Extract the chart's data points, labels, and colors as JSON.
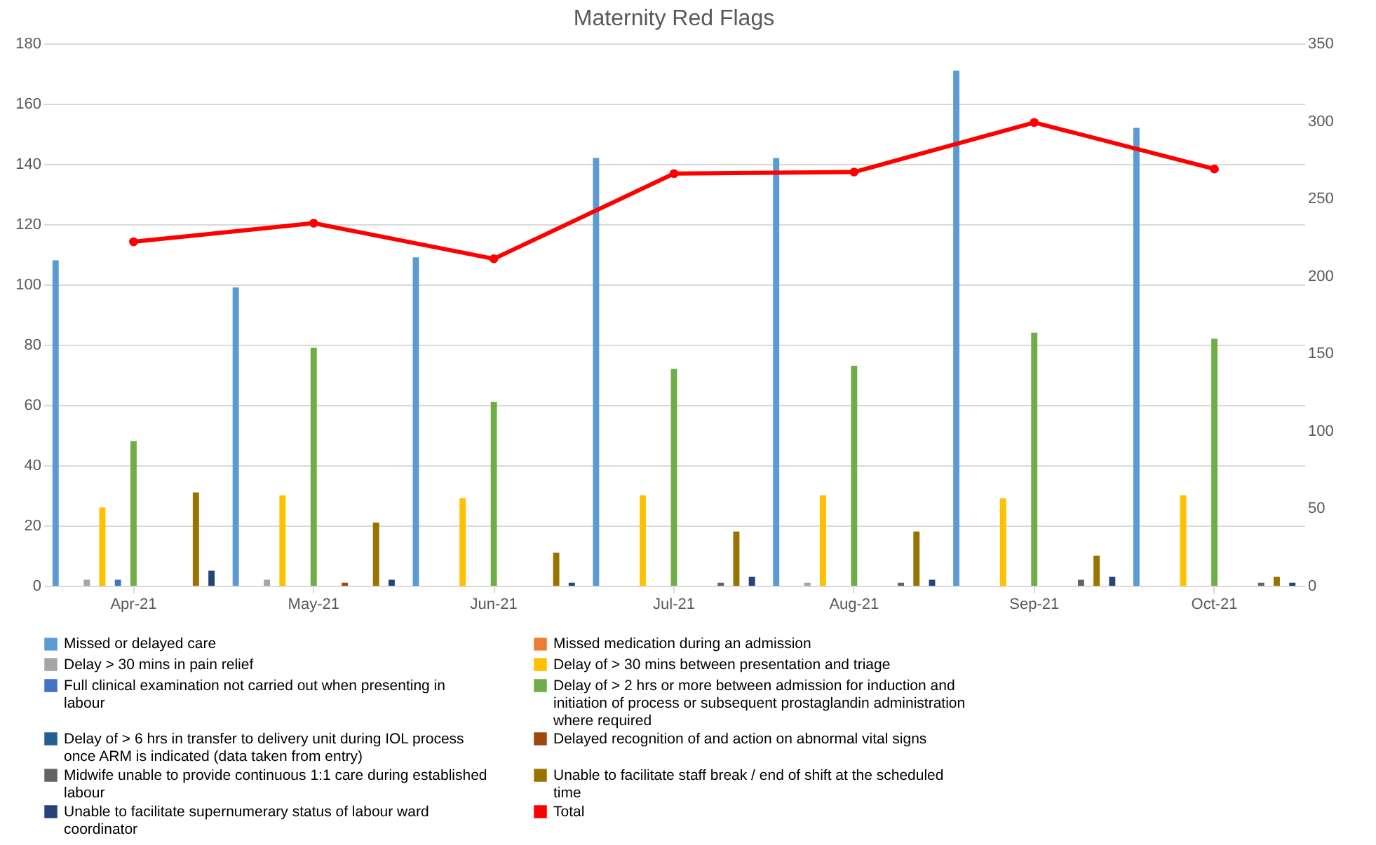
{
  "chart_data": {
    "type": "bar",
    "title": "Maternity Red Flags",
    "categories": [
      "Apr-21",
      "May-21",
      "Jun-21",
      "Jul-21",
      "Aug-21",
      "Sep-21",
      "Oct-21"
    ],
    "series": [
      {
        "name": "Missed or delayed care",
        "color": "#5b9bd5",
        "values": [
          108,
          99,
          109,
          142,
          142,
          171,
          152
        ]
      },
      {
        "name": "Missed medication during an admission",
        "color": "#ed7d31",
        "values": [
          0,
          0,
          0,
          0,
          0,
          0,
          0
        ]
      },
      {
        "name": "Delay > 30 mins in pain relief",
        "color": "#a5a5a5",
        "values": [
          2,
          2,
          0,
          0,
          1,
          0,
          0
        ]
      },
      {
        "name": "Delay of > 30 mins between presentation and triage",
        "color": "#ffc000",
        "values": [
          26,
          30,
          29,
          30,
          30,
          29,
          30
        ]
      },
      {
        "name": "Full clinical examination not carried out when presenting in labour",
        "color": "#4472c4",
        "values": [
          2,
          0,
          0,
          0,
          0,
          0,
          0
        ]
      },
      {
        "name": "Delay of > 2 hrs or more between admission for induction and initiation of process or subsequent prostaglandin administration where required",
        "color": "#70ad47",
        "values": [
          48,
          79,
          61,
          72,
          73,
          84,
          82
        ]
      },
      {
        "name": "Delay of > 6 hrs in transfer to delivery unit during IOL process once ARM is indicated (data taken from entry)",
        "color": "#255e91",
        "values": [
          0,
          0,
          0,
          0,
          0,
          0,
          0
        ]
      },
      {
        "name": "Delayed recognition of and action on abnormal vital signs",
        "color": "#9e480e",
        "values": [
          0,
          1,
          0,
          0,
          0,
          0,
          0
        ]
      },
      {
        "name": "Midwife unable to provide continuous 1:1 care during established labour",
        "color": "#636363",
        "values": [
          0,
          0,
          0,
          1,
          1,
          2,
          1
        ]
      },
      {
        "name": "Unable to facilitate staff break / end of shift at the scheduled time",
        "color": "#997300",
        "values": [
          31,
          21,
          11,
          18,
          18,
          10,
          3
        ]
      },
      {
        "name": "Unable to facilitate supernumerary status of labour ward coordinator",
        "color": "#264478",
        "values": [
          5,
          2,
          1,
          3,
          2,
          3,
          1
        ]
      },
      {
        "name": "Total",
        "color": "#ff0000",
        "type": "line",
        "axis": "y2",
        "values": [
          222,
          234,
          211,
          266,
          267,
          299,
          269
        ]
      }
    ],
    "ylim": [
      0,
      180
    ],
    "yticks": [
      0,
      20,
      40,
      60,
      80,
      100,
      120,
      140,
      160,
      180
    ],
    "y2lim": [
      0,
      350
    ],
    "y2ticks": [
      0,
      50,
      100,
      150,
      200,
      250,
      300,
      350
    ],
    "grid": "y",
    "legend": "bottom",
    "marker": "circle"
  }
}
